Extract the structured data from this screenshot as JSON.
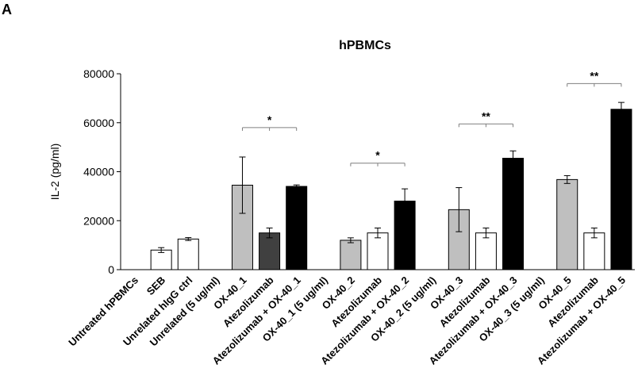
{
  "panel_label": "A",
  "chart_data": {
    "type": "bar",
    "title": "hPBMCs",
    "xlabel": "",
    "ylabel": "IL-2 (pg/ml)",
    "ylim": [
      0,
      80000
    ],
    "yticks": [
      0,
      20000,
      40000,
      60000,
      80000
    ],
    "grid": false,
    "categories": [
      "Untreated hPBMCs",
      "SEB",
      "Unrelated hIgG ctrl",
      "Unrelated (5 ug/ml)",
      "OX-40_1",
      "Atezolizumab",
      "Atezolizumab + OX-40_1",
      "OX-40_1 (5 ug/ml)",
      "OX-40_2",
      "Atezolizumab",
      "Atezolizumab + OX-40_2",
      "OX-40_2 (5 ug/ml)",
      "OX-40_3",
      "Atezolizumab",
      "Atezolizumab + OX-40_3",
      "OX-40_3 (5 ug/ml)",
      "OX-40_5",
      "Atezolizumab",
      "Atezolizumab + OX-40_5"
    ],
    "values": [
      null,
      8000,
      12500,
      null,
      34500,
      15000,
      34000,
      null,
      12000,
      15000,
      28000,
      null,
      24500,
      15000,
      45500,
      null,
      36800,
      15000,
      65500
    ],
    "errors": [
      null,
      1000,
      600,
      null,
      11500,
      2000,
      600,
      null,
      1000,
      2000,
      5000,
      null,
      9000,
      2000,
      3000,
      null,
      1600,
      2000,
      2800
    ],
    "colors": [
      null,
      "#ffffff",
      "#ffffff",
      null,
      "#bfbfbf",
      "#404040",
      "#000000",
      null,
      "#bfbfbf",
      "#ffffff",
      "#000000",
      null,
      "#bfbfbf",
      "#ffffff",
      "#000000",
      null,
      "#bfbfbf",
      "#ffffff",
      "#000000"
    ],
    "significance": [
      {
        "from": 4,
        "to": 6,
        "label": "*",
        "y": 58000
      },
      {
        "from": 8,
        "to": 10,
        "label": "*",
        "y": 43500
      },
      {
        "from": 12,
        "to": 14,
        "label": "**",
        "y": 59500
      },
      {
        "from": 16,
        "to": 18,
        "label": "**",
        "y": 76000
      }
    ]
  }
}
